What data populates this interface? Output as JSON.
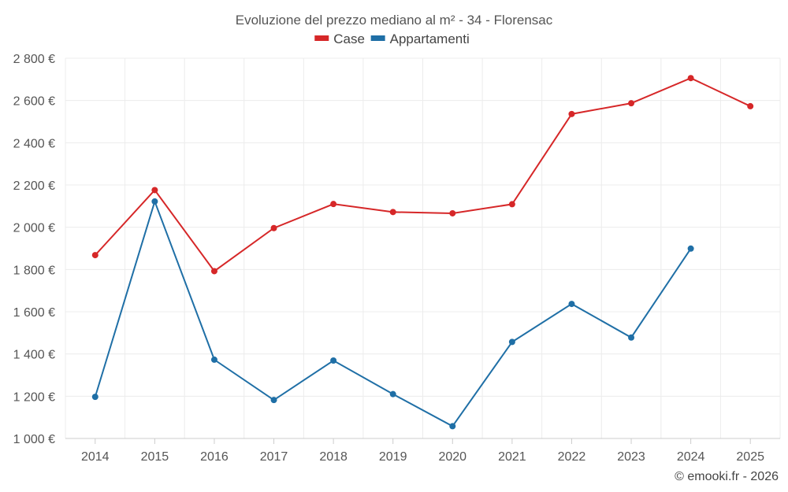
{
  "chart_data": {
    "type": "line",
    "title": "Evoluzione del prezzo mediano al m² - 34 - Florensac",
    "categories": [
      "2014",
      "2015",
      "2016",
      "2017",
      "2018",
      "2019",
      "2020",
      "2021",
      "2022",
      "2023",
      "2024",
      "2025"
    ],
    "series": [
      {
        "name": "Case",
        "color": "#d62728",
        "values": [
          1868,
          2176,
          1792,
          1996,
          2110,
          2072,
          2066,
          2109,
          2536,
          2587,
          2706,
          2573
        ]
      },
      {
        "name": "Appartamenti",
        "color": "#1f6fa6",
        "values": [
          1197,
          2122,
          1373,
          1182,
          1369,
          1210,
          1058,
          1457,
          1637,
          1478,
          1899,
          null
        ]
      }
    ],
    "ylim": [
      1000,
      2800
    ],
    "yticks": [
      1000,
      1200,
      1400,
      1600,
      1800,
      2000,
      2200,
      2400,
      2600,
      2800
    ],
    "ytick_labels": [
      "1 000 €",
      "1 200 €",
      "1 400 €",
      "1 600 €",
      "1 800 €",
      "2 000 €",
      "2 200 €",
      "2 400 €",
      "2 600 €",
      "2 800 €"
    ],
    "xlabel": "",
    "ylabel": "",
    "grid": true,
    "legend_position": "top-center"
  },
  "credit": "© emooki.fr - 2026"
}
